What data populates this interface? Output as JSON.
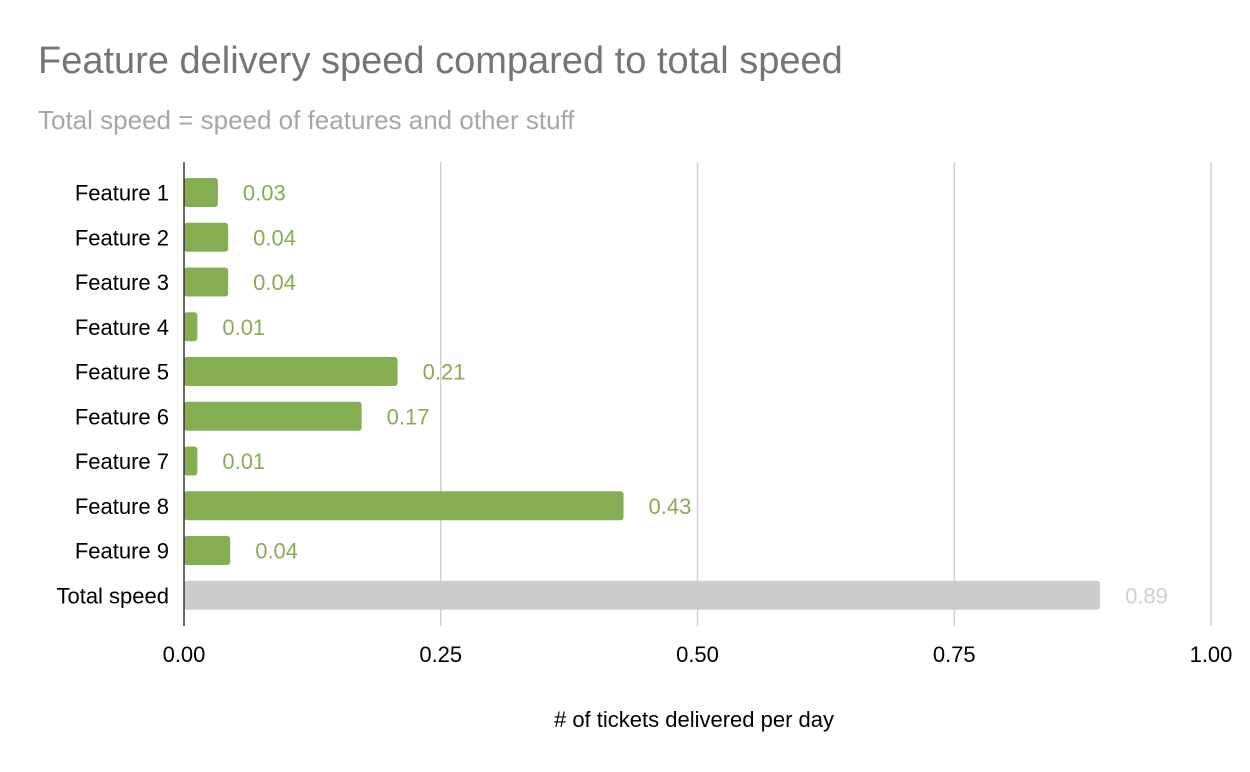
{
  "chart_data": {
    "type": "bar",
    "orientation": "horizontal",
    "title": "Feature delivery speed compared to total speed",
    "subtitle": "Total speed = speed of features and other stuff",
    "xlabel": "# of tickets delivered per day",
    "ylabel": "",
    "xlim": [
      0,
      1
    ],
    "xticks": [
      "0.00",
      "0.25",
      "0.50",
      "0.75",
      "1.00"
    ],
    "xtick_values": [
      0,
      0.25,
      0.5,
      0.75,
      1.0
    ],
    "grid": true,
    "categories": [
      "Feature 1",
      "Feature 2",
      "Feature 3",
      "Feature 4",
      "Feature 5",
      "Feature 6",
      "Feature 7",
      "Feature 8",
      "Feature 9",
      "Total speed"
    ],
    "values": [
      0.033,
      0.043,
      0.043,
      0.013,
      0.208,
      0.173,
      0.013,
      0.428,
      0.045,
      0.892
    ],
    "data_labels": [
      "0.03",
      "0.04",
      "0.04",
      "0.01",
      "0.21",
      "0.17",
      "0.01",
      "0.43",
      "0.04",
      "0.89"
    ],
    "colors": {
      "feature": "#85ad52",
      "total": "#cccccc",
      "feature_label": "#85ad52",
      "total_label": "#d0d0d0",
      "grid": "#d0d0d0",
      "axis": "#333333"
    }
  }
}
